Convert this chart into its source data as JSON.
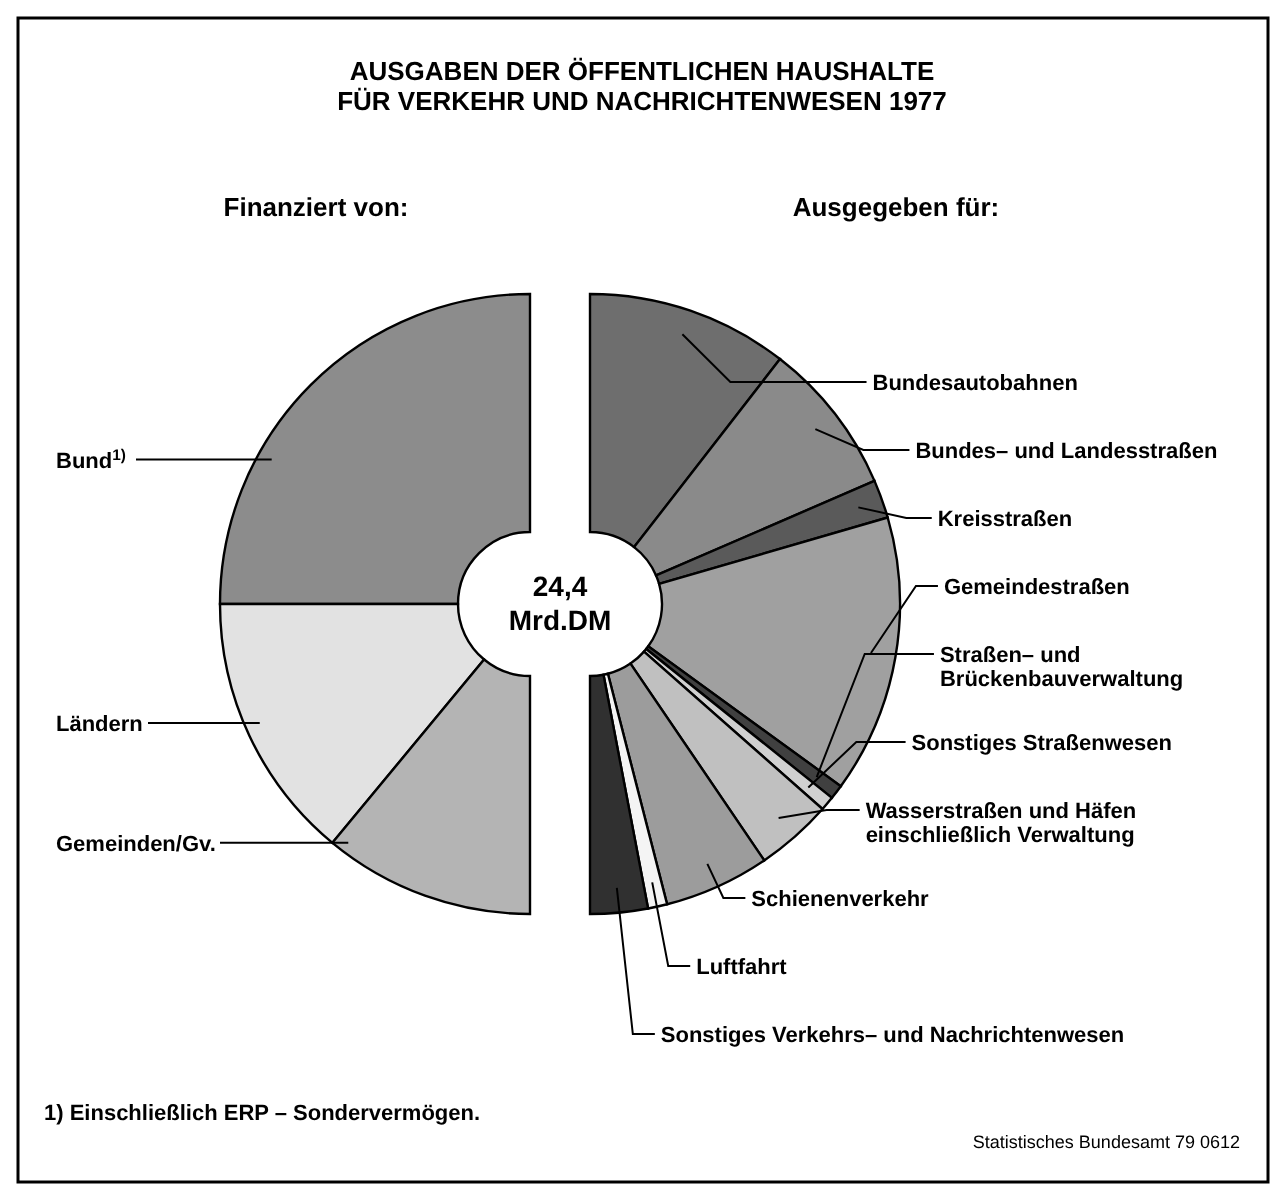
{
  "chart_data": [
    {
      "type": "donut",
      "title": "AUSGABEN DER ÖFFENTLICHEN HAUSHALTE FÜR VERKEHR UND NACHRICHTENWESEN 1977",
      "subtitle": "Finanziert von:",
      "categories": [
        "Bund$^{1)}$",
        "Ländern",
        "Gemeinden/Gv."
      ],
      "values": [
        50,
        28,
        22
      ],
      "colors": [
        "#8c8c8c",
        "#e2e2e2",
        "#b4b4b4"
      ],
      "annotations": [
        "24,4 Mrd.DM",
        "1) Einschließlich ERP – Sondervermögen."
      ]
    },
    {
      "type": "donut",
      "subtitle": "Ausgegeben für:",
      "categories": [
        "Bundesautobahnen",
        "Bundes– und Landesstraßen",
        "Kreisstraßen",
        "Gemeindestraßen",
        "Straßen– und Brückenbauverwaltung",
        "Sonstiges Straßenwesen",
        "Wasserstraßen und Häfen einschließlich Verwaltung",
        "Schienenverkehr",
        "Luftfahrt",
        "Sonstiges Verkehrs– und Nachrichtenwesen"
      ],
      "values": [
        21,
        16,
        4,
        29,
        1.5,
        1.5,
        8,
        11,
        2,
        6
      ],
      "colors": [
        "#6e6e6e",
        "#8a8a8a",
        "#5a5a5a",
        "#a0a0a0",
        "#404040",
        "#d0d0d0",
        "#c0c0c0",
        "#9c9c9c",
        "#f4f4f4",
        "#303030"
      ],
      "annotations": [
        "Statistisches Bundesamt 79 0612"
      ]
    }
  ]
}
